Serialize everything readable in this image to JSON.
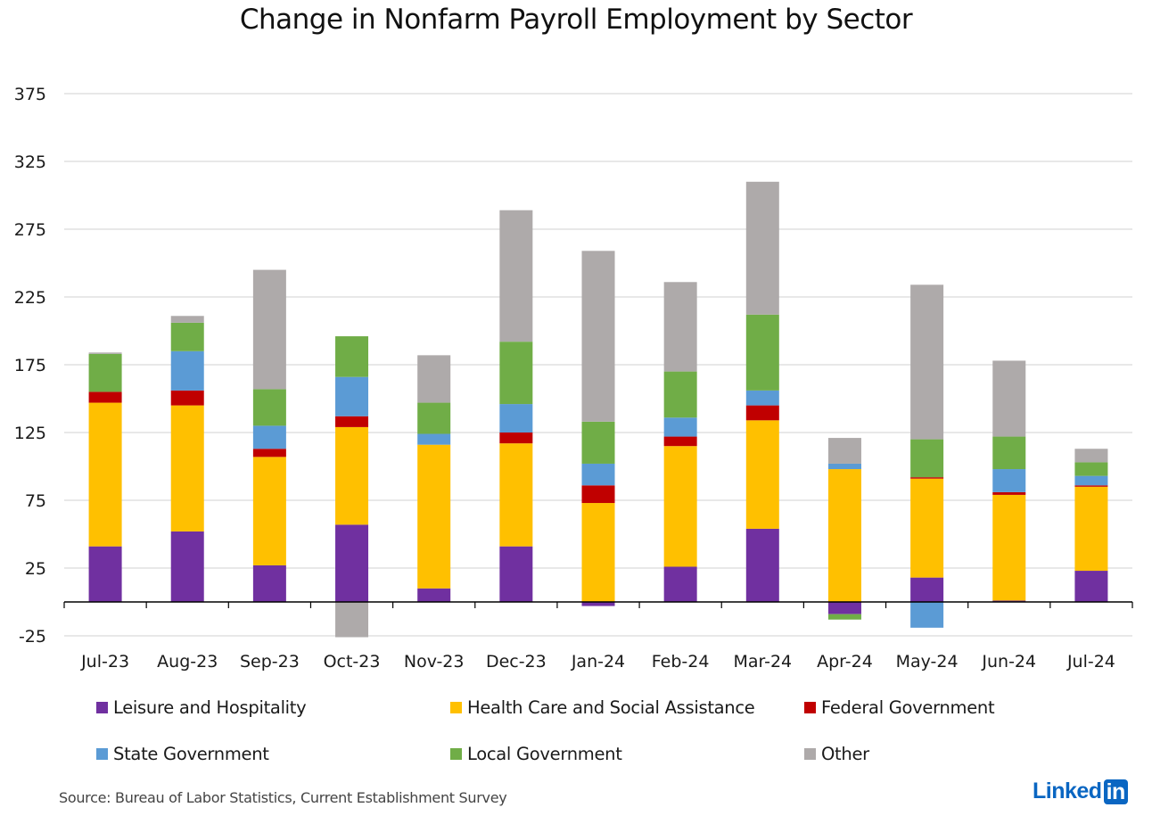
{
  "chart_data": {
    "type": "bar",
    "stacked": true,
    "title": "Change in Nonfarm Payroll Employment by Sector",
    "xlabel": "",
    "ylabel": "",
    "ylim": [
      -25,
      375
    ],
    "yticks": [
      -25,
      25,
      75,
      125,
      175,
      225,
      275,
      325,
      375
    ],
    "grid": true,
    "legend_position": "bottom",
    "categories": [
      "Jul-23",
      "Aug-23",
      "Sep-23",
      "Oct-23",
      "Nov-23",
      "Dec-23",
      "Jan-24",
      "Feb-24",
      "Mar-24",
      "Apr-24",
      "May-24",
      "Jun-24",
      "Jul-24"
    ],
    "series": [
      {
        "name": "Leisure and Hospitality",
        "color": "#7030a0",
        "values": [
          41,
          52,
          27,
          57,
          10,
          41,
          -3,
          26,
          54,
          -9,
          18,
          1,
          23
        ]
      },
      {
        "name": "Health Care and Social Assistance",
        "color": "#ffc000",
        "values": [
          106,
          93,
          80,
          72,
          106,
          76,
          73,
          89,
          80,
          98,
          73,
          78,
          62
        ]
      },
      {
        "name": "Federal Government",
        "color": "#c00000",
        "values": [
          8,
          11,
          6,
          8,
          0,
          8,
          13,
          7,
          11,
          0,
          1,
          2,
          1
        ]
      },
      {
        "name": "State Government",
        "color": "#5b9bd5",
        "values": [
          0,
          29,
          17,
          29,
          8,
          21,
          16,
          14,
          11,
          4,
          -19,
          17,
          7
        ]
      },
      {
        "name": "Local Government",
        "color": "#70ad47",
        "values": [
          28,
          21,
          27,
          30,
          23,
          46,
          31,
          34,
          56,
          -4,
          28,
          24,
          10
        ]
      },
      {
        "name": "Other",
        "color": "#aeaaaa",
        "values": [
          1,
          5,
          88,
          -26,
          35,
          97,
          126,
          66,
          98,
          19,
          114,
          56,
          10
        ]
      }
    ]
  },
  "source": "Source: Bureau of Labor Statistics, Current Establishment Survey",
  "logo": {
    "text": "Linked",
    "box": "in"
  }
}
